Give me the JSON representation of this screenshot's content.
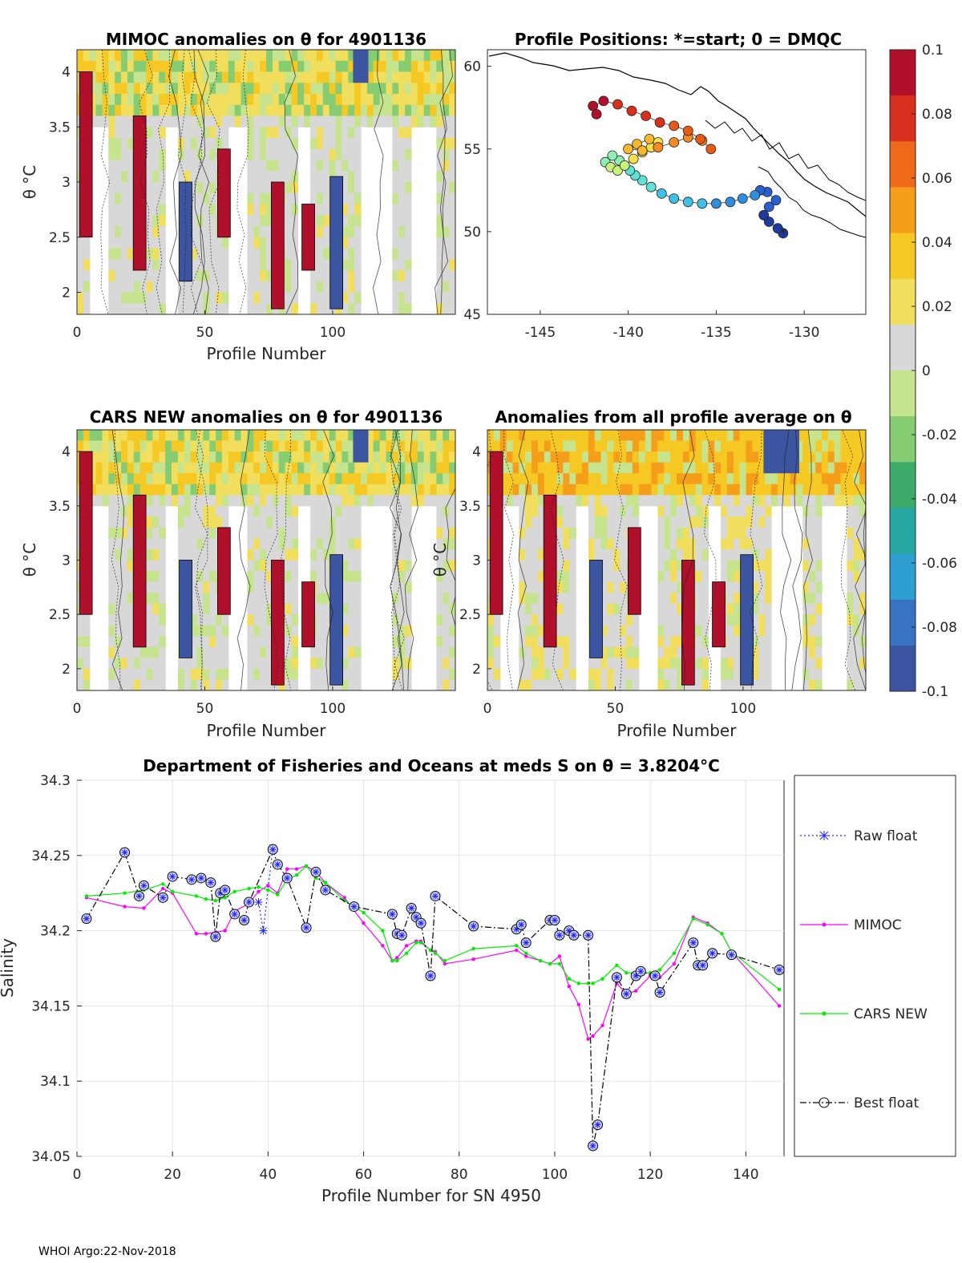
{
  "footer": "WHOI Argo:22-Nov-2018",
  "colorbar": {
    "ticks": [
      "0.1",
      "0.08",
      "0.06",
      "0.04",
      "0.02",
      "0",
      "-0.02",
      "-0.04",
      "-0.06",
      "-0.08",
      "-0.1"
    ],
    "colors": [
      "#b0102a",
      "#d7301f",
      "#ee6a1a",
      "#f59e1a",
      "#f6c824",
      "#f1de5c",
      "#d8d8d8",
      "#c6e38e",
      "#86cc72",
      "#3cab6a",
      "#26a6a0",
      "#2e9fd0",
      "#3a72c2",
      "#3c55a0"
    ]
  },
  "chart_data": [
    {
      "type": "heatmap",
      "title": "MIMOC anomalies on θ  for 4901136",
      "xlabel": "Profile Number",
      "ylabel": "θ °C",
      "xlim": [
        0,
        148
      ],
      "ylim": [
        1.8,
        4.2
      ],
      "xticks": [
        "0",
        "50",
        "100"
      ],
      "yticks": [
        "2",
        "2.5",
        "3",
        "3.5",
        "4"
      ]
    },
    {
      "type": "scatter",
      "title": "Profile Positions: *=start; 0 = DMQC",
      "xlim": [
        -148,
        -126.5
      ],
      "ylim": [
        45,
        61
      ],
      "xticks": [
        "-145",
        "-140",
        "-135",
        "-130"
      ],
      "yticks": [
        "45",
        "50",
        "55",
        "60"
      ],
      "track_lon": [
        -131.2,
        -131.5,
        -132.0,
        -132.3,
        -132.0,
        -131.6,
        -132.1,
        -132.5,
        -132.8,
        -133.5,
        -134.2,
        -135.0,
        -135.8,
        -136.6,
        -137.4,
        -138.1,
        -138.7,
        -139.2,
        -139.6,
        -139.9,
        -140.2,
        -140.5,
        -140.9,
        -141.3,
        -141.0,
        -140.6,
        -140.2,
        -139.7,
        -139.2,
        -138.7,
        -138.3,
        -138.8,
        -139.5,
        -140.0,
        -139.2,
        -138.3,
        -137.4,
        -136.6,
        -135.8,
        -135.3,
        -135.9,
        -136.6,
        -137.4,
        -138.2,
        -139.0,
        -139.8,
        -140.6,
        -141.4,
        -142.0,
        -141.8
      ],
      "track_lat": [
        49.9,
        50.2,
        50.6,
        51.0,
        51.5,
        51.9,
        52.4,
        52.5,
        52.2,
        52.0,
        51.8,
        51.7,
        51.7,
        51.8,
        52.0,
        52.3,
        52.7,
        53.1,
        53.4,
        53.7,
        54.0,
        54.3,
        54.6,
        54.2,
        53.9,
        53.7,
        54.0,
        54.4,
        54.8,
        55.1,
        55.4,
        55.6,
        55.3,
        55.0,
        54.9,
        55.1,
        55.4,
        55.7,
        55.5,
        55.0,
        55.6,
        56.1,
        56.4,
        56.6,
        57.0,
        57.3,
        57.7,
        57.9,
        57.6,
        57.1
      ]
    },
    {
      "type": "heatmap",
      "title": "CARS NEW anomalies on θ for 4901136",
      "xlabel": "Profile Number",
      "ylabel": "θ °C",
      "xlim": [
        0,
        148
      ],
      "ylim": [
        1.8,
        4.2
      ],
      "xticks": [
        "0",
        "50",
        "100"
      ],
      "yticks": [
        "2",
        "2.5",
        "3",
        "3.5",
        "4"
      ]
    },
    {
      "type": "heatmap",
      "title": "Anomalies from all profile average on θ",
      "xlabel": "Profile Number",
      "ylabel": "θ °C",
      "xlim": [
        0,
        148
      ],
      "ylim": [
        1.8,
        4.2
      ],
      "xticks": [
        "0",
        "50",
        "100"
      ],
      "yticks": [
        "2",
        "2.5",
        "3",
        "3.5",
        "4"
      ]
    },
    {
      "type": "line",
      "title": "Department of Fisheries and Oceans at meds S on θ = 3.8204°C",
      "xlabel": "Profile Number for SN 4950",
      "ylabel": "Salinity",
      "xlim": [
        0,
        148
      ],
      "ylim": [
        34.05,
        34.3
      ],
      "xticks": [
        "0",
        "20",
        "40",
        "60",
        "80",
        "100",
        "120",
        "140"
      ],
      "yticks": [
        "34.05",
        "34.1",
        "34.15",
        "34.2",
        "34.25",
        "34.3"
      ],
      "series": [
        {
          "name": "Raw float",
          "color": "#2222ff",
          "x": [
            38,
            39,
            41
          ],
          "y": [
            34.219,
            34.2,
            34.255
          ]
        },
        {
          "name": "MIMOC",
          "color": "#ff00ff",
          "x": [
            2,
            10,
            14,
            18,
            20,
            25,
            27,
            29,
            31,
            33,
            36,
            38,
            40,
            42,
            44,
            46,
            48,
            50,
            52,
            56,
            60,
            64,
            66,
            67,
            69,
            71,
            72,
            74,
            75,
            77,
            83,
            92,
            94,
            97,
            99,
            101,
            103,
            105,
            107,
            108,
            110,
            113,
            115,
            117,
            120,
            122,
            125,
            129,
            132,
            135,
            137,
            147
          ],
          "y": [
            34.222,
            34.216,
            34.215,
            34.228,
            34.225,
            34.198,
            34.198,
            34.199,
            34.2,
            34.213,
            34.218,
            34.226,
            34.23,
            34.225,
            34.241,
            34.241,
            34.243,
            34.239,
            34.232,
            34.222,
            34.205,
            34.19,
            34.18,
            34.182,
            34.19,
            34.193,
            34.193,
            34.187,
            34.186,
            34.178,
            34.181,
            34.187,
            34.183,
            34.18,
            34.178,
            34.183,
            34.163,
            34.151,
            34.128,
            34.13,
            34.137,
            34.165,
            34.158,
            34.16,
            34.17,
            34.169,
            34.178,
            34.209,
            34.205,
            34.198,
            34.186,
            34.15
          ],
          "markers": "dot"
        },
        {
          "name": "CARS NEW",
          "color": "#00ee00",
          "x": [
            2,
            10,
            14,
            18,
            20,
            25,
            27,
            29,
            31,
            33,
            36,
            38,
            40,
            42,
            44,
            46,
            48,
            50,
            52,
            56,
            60,
            64,
            66,
            67,
            69,
            71,
            72,
            74,
            75,
            77,
            83,
            92,
            94,
            97,
            99,
            101,
            103,
            105,
            107,
            108,
            110,
            113,
            115,
            117,
            120,
            122,
            125,
            129,
            132,
            135,
            137,
            147
          ],
          "y": [
            34.223,
            34.225,
            34.227,
            34.231,
            34.226,
            34.223,
            34.221,
            34.22,
            34.222,
            34.226,
            34.228,
            34.229,
            34.227,
            34.224,
            34.234,
            34.237,
            34.243,
            34.235,
            34.232,
            34.22,
            34.212,
            34.2,
            34.18,
            34.18,
            34.185,
            34.192,
            34.192,
            34.187,
            34.185,
            34.18,
            34.188,
            34.19,
            34.185,
            34.18,
            34.178,
            34.178,
            34.168,
            34.165,
            34.165,
            34.165,
            34.168,
            34.177,
            34.172,
            34.172,
            34.172,
            34.174,
            34.185,
            34.208,
            34.204,
            34.198,
            34.186,
            34.161
          ],
          "markers": "dot"
        },
        {
          "name": "Best float",
          "color": "#000000",
          "x": [
            2,
            10,
            13,
            14,
            18,
            20,
            24,
            26,
            28,
            29,
            30,
            31,
            33,
            35,
            36,
            41,
            42,
            44,
            48,
            50,
            52,
            58,
            66,
            67,
            68,
            70,
            71,
            72,
            74,
            75,
            83,
            92,
            93,
            94,
            99,
            100,
            101,
            103,
            104,
            107,
            108,
            109,
            113,
            115,
            117,
            118,
            121,
            122,
            129,
            130,
            131,
            133,
            137,
            147
          ],
          "y": [
            34.208,
            34.252,
            34.223,
            34.23,
            34.222,
            34.236,
            34.234,
            34.235,
            34.232,
            34.196,
            34.225,
            34.227,
            34.211,
            34.207,
            34.219,
            34.254,
            34.244,
            34.235,
            34.202,
            34.239,
            34.227,
            34.216,
            34.211,
            34.198,
            34.197,
            34.215,
            34.209,
            34.205,
            34.17,
            34.223,
            34.203,
            34.201,
            34.204,
            34.192,
            34.207,
            34.207,
            34.197,
            34.2,
            34.197,
            34.197,
            34.057,
            34.071,
            34.169,
            34.158,
            34.17,
            34.173,
            34.17,
            34.159,
            34.192,
            34.177,
            34.177,
            34.185,
            34.184,
            34.174
          ],
          "markers": "circle"
        }
      ],
      "legend": "outside-right"
    }
  ]
}
